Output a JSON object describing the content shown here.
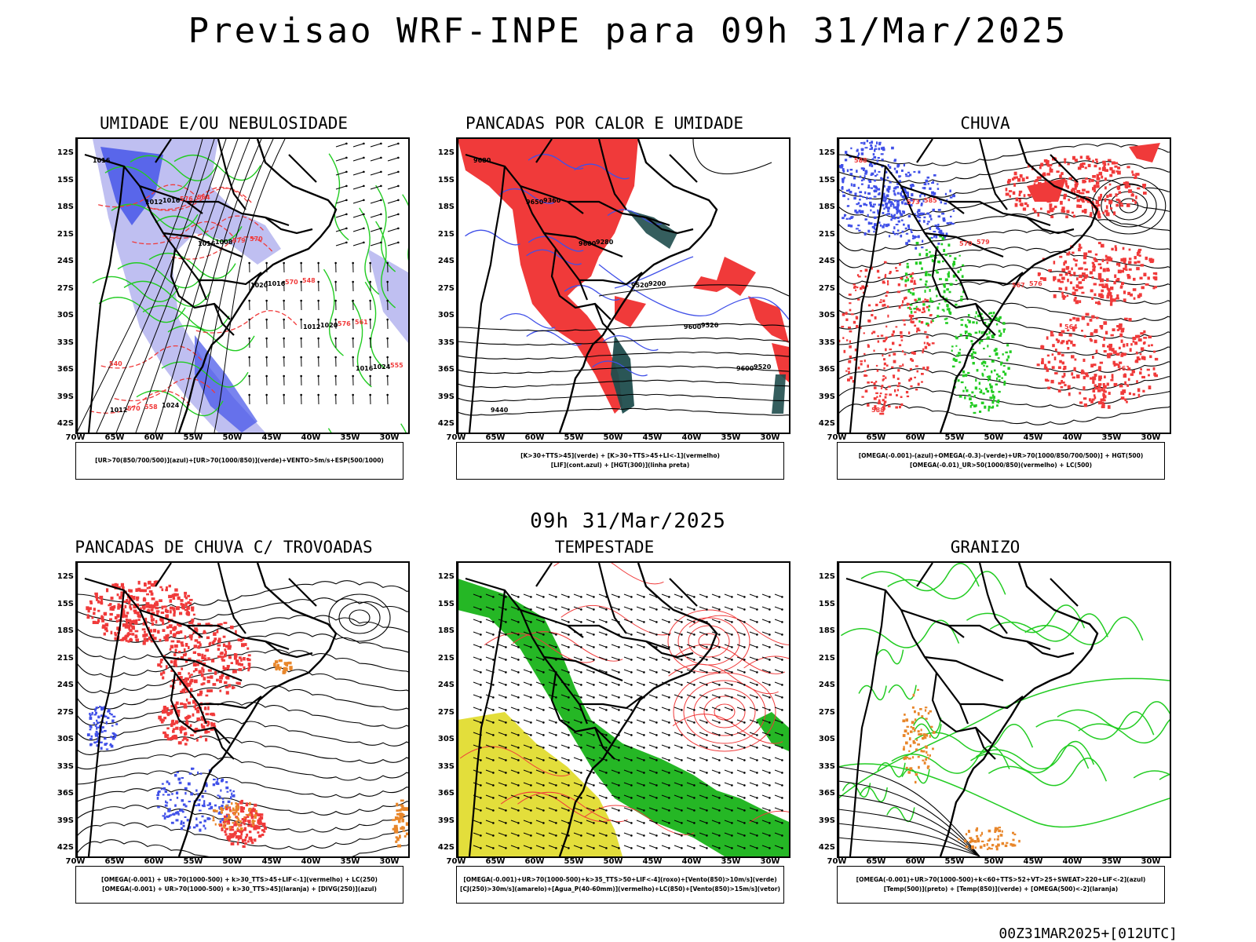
{
  "title": "Previsao WRF-INPE  para 09h 31/Mar/2025",
  "mid_date": "09h 31/Mar/2025",
  "run_stamp": "00Z31MAR2025+[012UTC]",
  "lat_labels": [
    "12S",
    "15S",
    "18S",
    "21S",
    "24S",
    "27S",
    "30S",
    "33S",
    "36S",
    "39S",
    "42S"
  ],
  "lon_labels": [
    "70W",
    "65W",
    "60W",
    "55W",
    "50W",
    "45W",
    "40W",
    "35W",
    "30W"
  ],
  "colors": {
    "blue": "#4050e8",
    "lightblue": "#b8b8f0",
    "green": "#22cc22",
    "red": "#f03a3a",
    "orange": "#e8862a",
    "yellow": "#e2dc30",
    "darkgreen": "#1f4d4d",
    "forest": "#19b319"
  },
  "panels": [
    {
      "id": "umidade",
      "title": "UMIDADE E/OU NEBULOSIDADE",
      "legend": [
        "[UR>70(850/700/500)](azul)+[UR>70(1000/850)](verde)+VENTO>5m/s+ESP(500/1000)"
      ],
      "labels": [
        "1016",
        "1012",
        "1016",
        "1020",
        "1012",
        "1016",
        "1012",
        "1016",
        "1008",
        "1016",
        "1020",
        "1024",
        "570",
        "576",
        "579",
        "570",
        "576",
        "555",
        "558",
        "564",
        "570",
        "548",
        "561",
        "540",
        "1024"
      ]
    },
    {
      "id": "pancadas_calor",
      "title": "PANCADAS POR CALOR E UMIDADE",
      "legend": [
        "[K>30+TTS>45](verde) + [K>30+TTS>45+LI<-1](vermelho)",
        "[LIF](cont.azul) + [HGT(300)](linha preta)"
      ],
      "labels": [
        "9680",
        "9650",
        "9600",
        "9520",
        "9600",
        "9600",
        "9440",
        "9360",
        "9280",
        "9200",
        "9520",
        "9520"
      ]
    },
    {
      "id": "chuva",
      "title": "CHUVA",
      "legend": [
        "[OMEGA(-0.001)-(azul)+OMEGA(-0.3)-(verde)+UR>70(1000/850/700/500)] + HGT(500)",
        "[OMEGA(-0.01)_UR>50(1000/850)(vermelho) + LC(500)"
      ],
      "labels": [
        "588",
        "573",
        "570",
        "567",
        "564",
        "561",
        "588",
        "585",
        "579",
        "576"
      ]
    },
    {
      "id": "trovoadas",
      "title": "PANCADAS DE CHUVA C/ TROVOADAS",
      "legend": [
        "[OMEGA(-0.001) + UR>70(1000-500) + k>30_TTS>45+LIF<-1](vermelho) + LC(250)",
        "[OMEGA(-0.001) + UR>70(1000-500) + k>30_TTS>45](laranja) + [DIVG(250)](azul)"
      ],
      "labels": []
    },
    {
      "id": "tempestade",
      "title": "TEMPESTADE",
      "legend": [
        "[OMEGA(-0.001)+UR>70(1000-500)+k>35_TTS>50+LIF<-4](roxo)+[Vento(850)>10m/s](verde)",
        "[CJ(250)>30m/s](amarelo)+[Agua_P(40-60mm)](vermelho)+LC(850)+[Vento(850)>15m/s](vetor)"
      ],
      "labels": []
    },
    {
      "id": "granizo",
      "title": "GRANIZO",
      "legend": [
        "[OMEGA(-0.001)+UR>70(1000-500)+k<60+TTS>52+VT>25+SWEAT>220+LIF<-2](azul)",
        "[Temp(500)](preto) + [Temp(850)](verde) + [OMEGA(500)<-2](laranja)"
      ],
      "labels": []
    }
  ]
}
